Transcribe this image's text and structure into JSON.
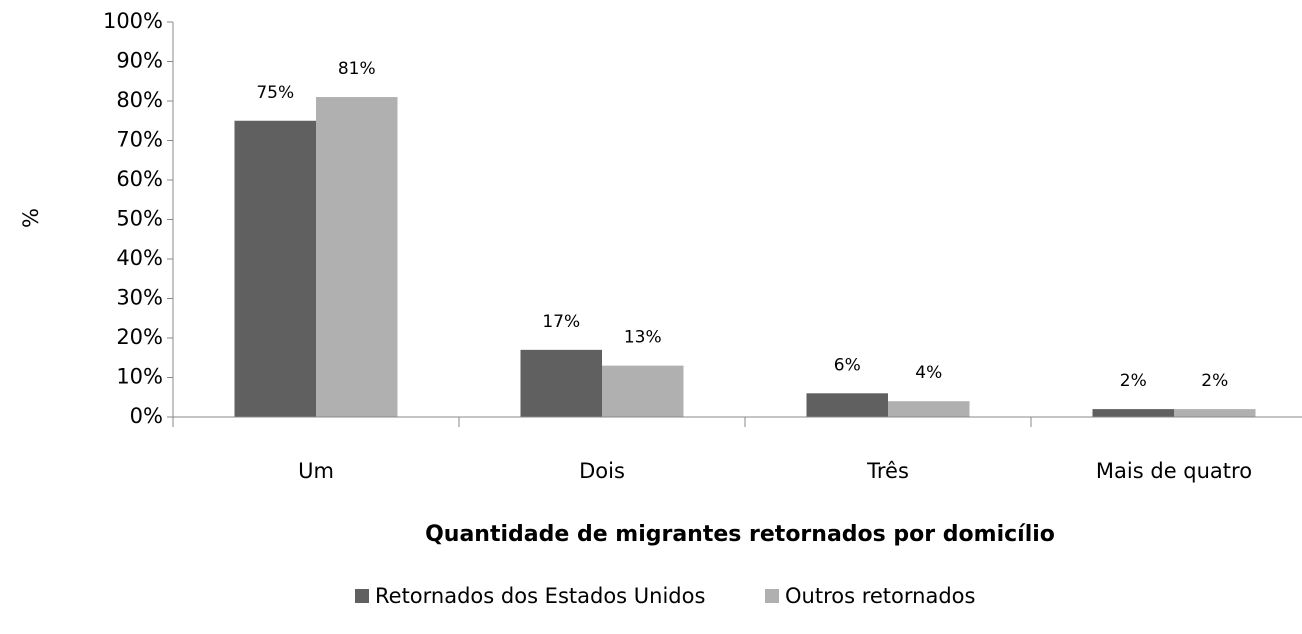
{
  "chart_data": {
    "type": "bar",
    "ylabel": "%",
    "xlabel": "Quantidade de migrantes retornados por domicílio",
    "categories": [
      "Um",
      "Dois",
      "Três",
      "Mais de quatro"
    ],
    "series": [
      {
        "name": "Retornados dos Estados Unidos",
        "color": "#606060",
        "values": [
          75,
          17,
          6,
          2
        ],
        "value_labels": [
          "75%",
          "17%",
          "6%",
          "2%"
        ]
      },
      {
        "name": "Outros retornados",
        "color": "#b0b0b0",
        "values": [
          81,
          13,
          4,
          2
        ],
        "value_labels": [
          "81%",
          "13%",
          "4%",
          "2%"
        ]
      }
    ],
    "ylim": [
      0,
      100
    ],
    "yticks": [
      {
        "value": 0,
        "label": "0%"
      },
      {
        "value": 10,
        "label": "10%"
      },
      {
        "value": 20,
        "label": "20%"
      },
      {
        "value": 30,
        "label": "30%"
      },
      {
        "value": 40,
        "label": "40%"
      },
      {
        "value": 50,
        "label": "50%"
      },
      {
        "value": 60,
        "label": "60%"
      },
      {
        "value": 70,
        "label": "70%"
      },
      {
        "value": 80,
        "label": "80%"
      },
      {
        "value": 90,
        "label": "90%"
      },
      {
        "value": 100,
        "label": "100%"
      }
    ],
    "legend": "bottom"
  }
}
